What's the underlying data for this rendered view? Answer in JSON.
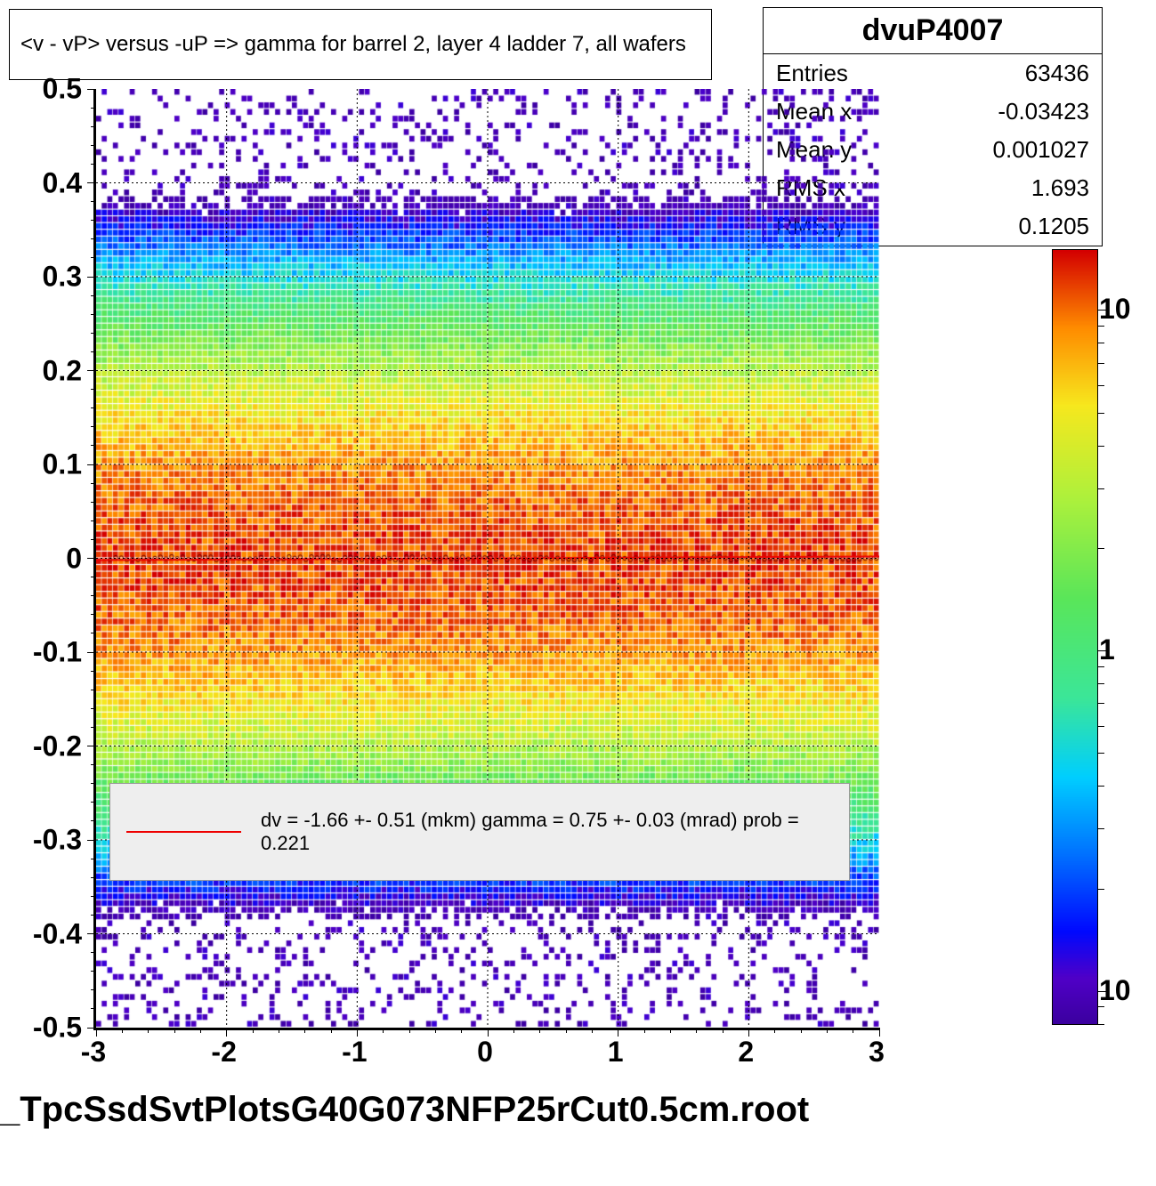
{
  "title": "<v - vP>      versus  -uP =>  gamma for barrel 2, layer 4 ladder 7, all wafers",
  "stats": {
    "name": "dvuP4007",
    "rows": [
      {
        "label": "Entries",
        "value": "63436"
      },
      {
        "label": "Mean x",
        "value": "-0.03423"
      },
      {
        "label": "Mean y",
        "value": "0.001027"
      },
      {
        "label": "RMS x",
        "value": "1.693"
      },
      {
        "label": "RMS y",
        "value": "0.1205"
      }
    ]
  },
  "chart": {
    "type": "heatmap-2d-histogram",
    "xlim": [
      -3,
      3
    ],
    "ylim": [
      -0.5,
      0.5
    ],
    "xtick_step": 1,
    "ytick_step": 0.1,
    "sigma_y": 0.12,
    "nbins_x": 140,
    "nbins_y": 140,
    "z_log": true,
    "z_range": [
      0.08,
      15
    ],
    "grid_color": "#000000",
    "grid_dash": [
      2,
      3
    ],
    "fit_line_color": "#ee0000",
    "background": "#ffffff"
  },
  "palette": [
    {
      "stop": 0.0,
      "color": "#3b009f"
    },
    {
      "stop": 0.06,
      "color": "#5000c8"
    },
    {
      "stop": 0.12,
      "color": "#0009ff"
    },
    {
      "stop": 0.22,
      "color": "#0072ff"
    },
    {
      "stop": 0.32,
      "color": "#00cfff"
    },
    {
      "stop": 0.42,
      "color": "#3be69a"
    },
    {
      "stop": 0.55,
      "color": "#5ae65a"
    },
    {
      "stop": 0.68,
      "color": "#aef13c"
    },
    {
      "stop": 0.8,
      "color": "#f7e81e"
    },
    {
      "stop": 0.9,
      "color": "#ff8c00"
    },
    {
      "stop": 1.0,
      "color": "#d40000"
    }
  ],
  "colorbar": {
    "ticks": [
      {
        "value": 10,
        "label": "10"
      },
      {
        "value": 1,
        "label": "1"
      },
      {
        "value": 0.1,
        "label": "10"
      }
    ]
  },
  "legend": {
    "line_color": "#ee0000",
    "text": "dv =   -1.66 +-  0.51 (mkm) gamma =    0.75 +-  0.03 (mrad) prob = 0.221"
  },
  "footer": "_TpcSsdSvtPlotsG40G073NFP25rCut0.5cm.root",
  "colors": {
    "text": "#000000",
    "legend_bg": "#eeeeee"
  },
  "fontsize": {
    "title": 24,
    "stats_title": 34,
    "stats_row": 26,
    "axis": 32,
    "legend": 22,
    "footer": 40
  }
}
